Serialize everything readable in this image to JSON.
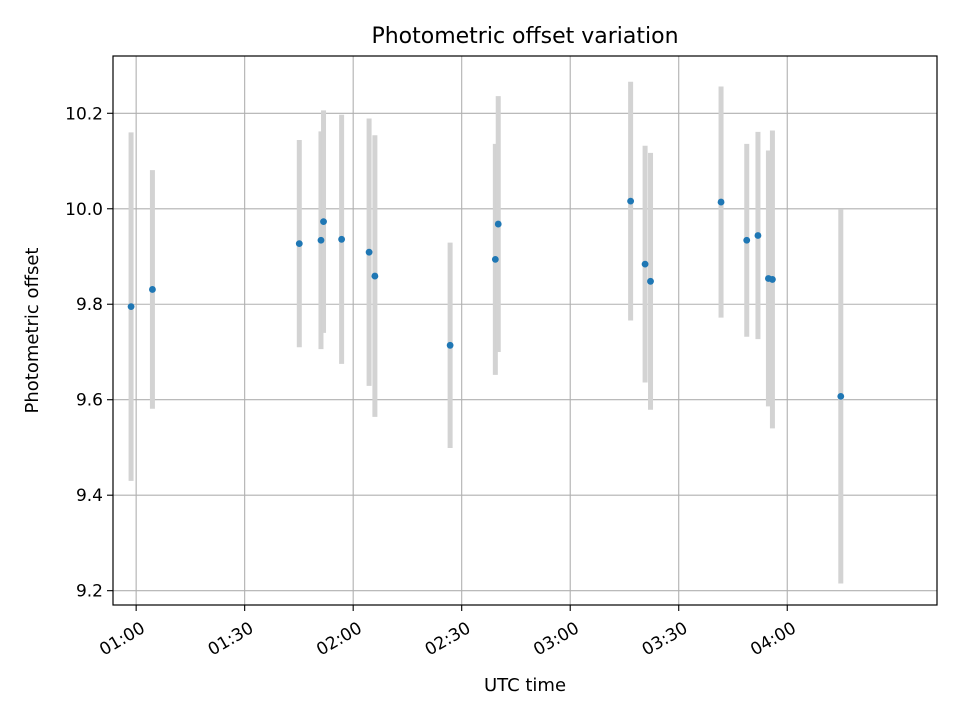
{
  "chart_data": {
    "type": "scatter",
    "title": "Photometric offset variation",
    "xlabel": "UTC time",
    "ylabel": "Photometric offset",
    "x_unit": "UTC time (HH:MM)",
    "xlim": [
      "00:53:36",
      "04:41:24"
    ],
    "ylim": [
      9.17,
      10.32
    ],
    "x_ticks": [
      "01:00",
      "01:30",
      "02:00",
      "02:30",
      "03:00",
      "03:30",
      "04:00"
    ],
    "y_ticks": [
      9.2,
      9.4,
      9.6,
      9.8,
      10.0,
      10.2
    ],
    "y_tick_labels": [
      "9.2",
      "9.4",
      "9.6",
      "9.8",
      "10.0",
      "10.2"
    ],
    "grid": true,
    "colors": {
      "points": "#1f77b4",
      "errorbars": "#d3d3d3",
      "grid": "#b0b0b0"
    },
    "series": [
      {
        "points": [
          {
            "x": "00:58:36",
            "y": 9.795,
            "yerr": 0.365
          },
          {
            "x": "01:04:30",
            "y": 9.831,
            "yerr": 0.25
          },
          {
            "x": "01:45:06",
            "y": 9.927,
            "yerr": 0.217
          },
          {
            "x": "01:51:06",
            "y": 9.934,
            "yerr": 0.228
          },
          {
            "x": "01:51:48",
            "y": 9.973,
            "yerr": 0.233
          },
          {
            "x": "01:56:48",
            "y": 9.936,
            "yerr": 0.261
          },
          {
            "x": "02:04:24",
            "y": 9.909,
            "yerr": 0.28
          },
          {
            "x": "02:06:00",
            "y": 9.859,
            "yerr": 0.295
          },
          {
            "x": "02:26:48",
            "y": 9.714,
            "yerr": 0.215
          },
          {
            "x": "02:39:18",
            "y": 9.894,
            "yerr": 0.242
          },
          {
            "x": "02:40:06",
            "y": 9.968,
            "yerr": 0.268
          },
          {
            "x": "03:16:42",
            "y": 10.016,
            "yerr": 0.25
          },
          {
            "x": "03:20:42",
            "y": 9.884,
            "yerr": 0.248
          },
          {
            "x": "03:22:12",
            "y": 9.848,
            "yerr": 0.269
          },
          {
            "x": "03:41:42",
            "y": 10.014,
            "yerr": 0.242
          },
          {
            "x": "03:48:48",
            "y": 9.934,
            "yerr": 0.202
          },
          {
            "x": "03:51:54",
            "y": 9.944,
            "yerr": 0.217
          },
          {
            "x": "03:54:48",
            "y": 9.854,
            "yerr": 0.268
          },
          {
            "x": "03:55:54",
            "y": 9.852,
            "yerr": 0.312
          },
          {
            "x": "04:14:48",
            "y": 9.607,
            "yerr": 0.392
          }
        ]
      }
    ]
  }
}
